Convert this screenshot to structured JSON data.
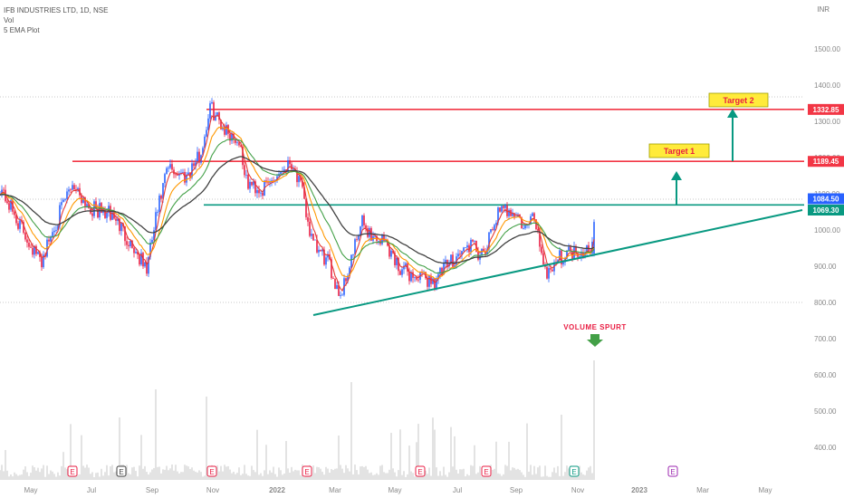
{
  "legend": {
    "symbol": "IFB INDUSTRIES LTD, 1D, NSE",
    "vol": "Vol",
    "ema": "5 EMA Plot"
  },
  "currency": "INR",
  "chart_data": {
    "type": "line",
    "title": "IFB INDUSTRIES LTD, 1D, NSE",
    "price_axis": {
      "ticks": [
        "1500.00",
        "1400.00",
        "1300.00",
        "1200.00",
        "1100.00",
        "1000.00",
        "900.00",
        "800.00",
        "700.00",
        "600.00",
        "500.00",
        "400.00"
      ],
      "values": [
        1500,
        1400,
        1300,
        1200,
        1100,
        1000,
        900,
        800,
        700,
        600,
        500,
        400
      ],
      "range": [
        370,
        1520
      ]
    },
    "time_axis": {
      "ticks": [
        "May",
        "Jul",
        "Sep",
        "Nov",
        "2022",
        "Mar",
        "May",
        "Jul",
        "Sep",
        "Nov",
        "2023",
        "Mar",
        "May"
      ]
    },
    "price_labels": [
      {
        "text": "1332.85",
        "value": 1332.85,
        "color": "#f23645"
      },
      {
        "text": "1189.45",
        "value": 1189.45,
        "color": "#f23645"
      },
      {
        "text": "1084.50",
        "value": 1084.5,
        "color": "#2962ff"
      },
      {
        "text": "1069.30",
        "value": 1069.3,
        "color": "#089981"
      }
    ],
    "levels": [
      {
        "value": 1332.85,
        "color": "#f23645"
      },
      {
        "value": 1189.45,
        "color": "#f23645"
      },
      {
        "value": 1069.3,
        "color": "#089981"
      }
    ],
    "targets": [
      {
        "label": "Target 1"
      },
      {
        "label": "Target 2"
      }
    ],
    "annotation": "VOLUME SPURT",
    "earnings_markers": [
      "E",
      "E",
      "E",
      "E",
      "E",
      "E",
      "E",
      "E",
      "E",
      "E",
      "E"
    ],
    "series": [
      {
        "name": "EMA short",
        "color": "#e53935"
      },
      {
        "name": "EMA medium",
        "color": "#ff9800"
      },
      {
        "name": "EMA long",
        "color": "#43a047"
      },
      {
        "name": "EMA longest",
        "color": "#424242"
      }
    ],
    "anchors": [
      [
        0,
        1120
      ],
      [
        18,
        1030
      ],
      [
        45,
        910
      ],
      [
        60,
        1010
      ],
      [
        80,
        1130
      ],
      [
        100,
        1060
      ],
      [
        125,
        1040
      ],
      [
        145,
        960
      ],
      [
        162,
        890
      ],
      [
        172,
        1030
      ],
      [
        185,
        1170
      ],
      [
        205,
        1150
      ],
      [
        222,
        1210
      ],
      [
        232,
        1340
      ],
      [
        248,
        1280
      ],
      [
        265,
        1240
      ],
      [
        272,
        1130
      ],
      [
        290,
        1110
      ],
      [
        312,
        1170
      ],
      [
        322,
        1190
      ],
      [
        333,
        1110
      ],
      [
        345,
        960
      ],
      [
        362,
        910
      ],
      [
        376,
        820
      ],
      [
        388,
        920
      ],
      [
        400,
        1020
      ],
      [
        412,
        980
      ],
      [
        425,
        970
      ],
      [
        440,
        900
      ],
      [
        458,
        870
      ],
      [
        480,
        860
      ],
      [
        500,
        920
      ],
      [
        520,
        960
      ],
      [
        534,
        920
      ],
      [
        548,
        1040
      ],
      [
        565,
        1060
      ],
      [
        580,
        1000
      ],
      [
        590,
        1040
      ],
      [
        603,
        880
      ],
      [
        615,
        920
      ],
      [
        630,
        940
      ],
      [
        645,
        945
      ],
      [
        655,
        960
      ],
      [
        657,
        1084.5
      ]
    ]
  }
}
